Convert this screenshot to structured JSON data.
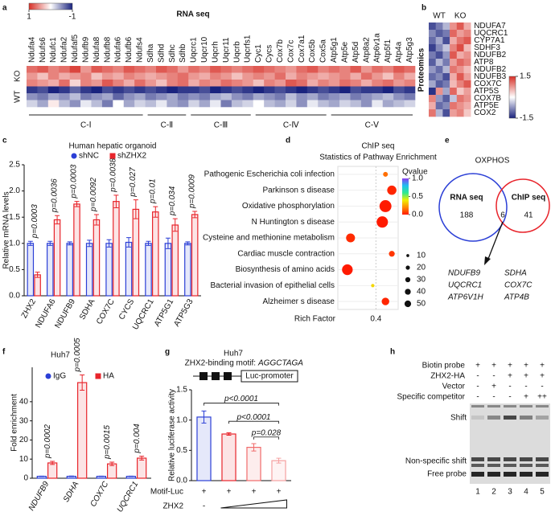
{
  "panel_labels": [
    "a",
    "b",
    "c",
    "d",
    "e",
    "f",
    "g",
    "h"
  ],
  "rna_seq": {
    "title": "RNA seq",
    "colorbar": {
      "ticks": [
        1,
        -1
      ],
      "colors": [
        "#d73027",
        "#ffffff",
        "#1a237e"
      ]
    },
    "complexes": [
      {
        "label": "C-Ⅰ",
        "genes": [
          "Ndufa4",
          "Ndufs6",
          "Ndufc1",
          "Ndufa2",
          "Ndufaf5",
          "Ndufb9",
          "Ndufa8",
          "Ndufb8",
          "Ndufa6",
          "Ndufb6",
          "Ndufs4"
        ]
      },
      {
        "label": "C-Ⅱ",
        "genes": [
          "Sdha",
          "Sdhd",
          "Sdhc",
          "Sdhb"
        ]
      },
      {
        "label": "C-Ⅲ",
        "genes": [
          "Uqcrc1",
          "Uqcr10",
          "Uqcrh",
          "Uqcr11",
          "Uqcrb",
          "Uqcrfs1"
        ]
      },
      {
        "label": "C-Ⅳ",
        "genes": [
          "Cyc1",
          "Cycs",
          "Cox7b",
          "Cox7c",
          "Cox7a1",
          "Cox5b",
          "Cox5a"
        ]
      },
      {
        "label": "C-Ⅴ",
        "genes": [
          "Atp5g1",
          "Atp5e",
          "Atp5d",
          "Atp8a2",
          "Atp6v1a",
          "Atp5f1",
          "Atp4a",
          "Atp5g3"
        ]
      }
    ],
    "conditions": [
      {
        "name": "KO",
        "values": [
          [
            0.7,
            0.8,
            0.6,
            0.7,
            0.9,
            0.5,
            0.8,
            0.7,
            0.6,
            0.8,
            0.7,
            0.6,
            0.8,
            0.7,
            0.5,
            0.7,
            0.6,
            0.8,
            0.7,
            0.6,
            0.7,
            0.8,
            0.7,
            0.6,
            0.5,
            0.7,
            0.8,
            0.6,
            0.7,
            0.6,
            0.8,
            0.5,
            0.7,
            0.6,
            0.8,
            0.7
          ],
          [
            0.5,
            0.3,
            0.6,
            0.4,
            0.5,
            0.6,
            0.3,
            0.5,
            0.4,
            0.6,
            0.5,
            0.4,
            0.5,
            0.6,
            0.7,
            0.5,
            0.4,
            0.6,
            0.5,
            0.3,
            0.5,
            0.6,
            0.5,
            0.7,
            0.4,
            0.6,
            0.5,
            0.4,
            0.5,
            0.6,
            0.4,
            0.7,
            0.5,
            0.3,
            0.6,
            0.4
          ],
          [
            0.6,
            0.5,
            0.4,
            0.7,
            0.2,
            0.6,
            0.5,
            0.8,
            0.6,
            0.4,
            0.7,
            0.5,
            0.3,
            0.6,
            0.7,
            0.4,
            0.6,
            0.5,
            0.7,
            0.6,
            0.5,
            0.3,
            0.6,
            0.5,
            0.8,
            0.7,
            0.4,
            0.6,
            0.5,
            0.7,
            0.6,
            0.4,
            0.6,
            0.7,
            0.5,
            0.6
          ]
        ]
      },
      {
        "name": "WT",
        "values": [
          [
            -0.9,
            -0.8,
            -1,
            -0.9,
            -0.7,
            -0.9,
            -1,
            -0.8,
            -0.9,
            -0.8,
            -0.9,
            -0.8,
            -0.9,
            -1,
            -0.9,
            -0.9,
            -0.8,
            -1,
            -0.9,
            -0.8,
            -0.9,
            -1,
            -0.9,
            -0.8,
            -0.9,
            -1,
            -0.9,
            -0.8,
            -0.9,
            -1,
            -0.8,
            -0.9,
            -0.9,
            -1,
            -0.8,
            -0.9
          ],
          [
            -0.5,
            -0.6,
            -0.4,
            -0.5,
            -0.3,
            -0.6,
            -0.5,
            -0.4,
            -0.7,
            -0.5,
            -0.4,
            -0.6,
            -0.5,
            -0.4,
            -0.6,
            -0.5,
            -0.6,
            -0.4,
            -0.3,
            -0.5,
            -0.6,
            -0.4,
            -0.5,
            -0.6,
            -0.3,
            -0.5,
            -0.4,
            -0.6,
            -0.5,
            -0.4,
            -0.6,
            -0.5,
            -0.4,
            -0.3,
            -0.5,
            -0.6
          ],
          [
            -0.2,
            -0.4,
            0.1,
            -0.3,
            -0.5,
            -0.1,
            -0.3,
            -0.6,
            0,
            -0.4,
            -0.2,
            -0.3,
            -0.1,
            -0.4,
            -0.5,
            -0.2,
            -0.4,
            -0.1,
            -0.6,
            -0.3,
            -0.2,
            0,
            -0.3,
            -0.4,
            -0.2,
            -0.5,
            -0.1,
            -0.3,
            -0.4,
            -0.2,
            -0.3,
            -0.5,
            -0.1,
            -0.4,
            -0.3,
            -0.2
          ]
        ]
      }
    ]
  },
  "proteomics": {
    "title": "Proteomics",
    "genes": [
      "NDUFA7",
      "UQCRC1",
      "CYP7A1",
      "SDHF3",
      "NDUFB2",
      "ATP8",
      "NDUFB2",
      "NDUFB3",
      "COX7C",
      "ATP5S",
      "COX7B",
      "ATP5E",
      "COX2"
    ],
    "colorbar": {
      "ticks": [
        1.5,
        -1.5
      ],
      "colors": [
        "#d73027",
        "#ffffff",
        "#1a237e"
      ]
    },
    "conditions": [
      {
        "name": "WT",
        "values": [
          [
            -1.2,
            -0.8,
            -1.0,
            -1.3,
            -0.9,
            -1.1,
            -0.7,
            -1.0,
            -0.6,
            -1.4,
            0.9,
            0.6,
            1.0
          ],
          [
            -0.9,
            -1.1,
            -0.6,
            -0.8,
            -1.2,
            -0.5,
            -1.0,
            -0.8,
            -1.1,
            0.8,
            -0.7,
            -1.0,
            -0.5
          ],
          [
            -0.5,
            -0.9,
            -1.2,
            -0.4,
            -0.7,
            -0.9,
            -0.5,
            -1.2,
            -0.9,
            -0.6,
            -1.1,
            -0.8,
            -1.2
          ]
        ]
      },
      {
        "name": "KO",
        "values": [
          [
            0.8,
            1.1,
            0.6,
            0.9,
            1.2,
            0.7,
            1.0,
            0.6,
            0.5,
            1.1,
            -0.4,
            1.0,
            0.7
          ],
          [
            1.2,
            0.7,
            1.0,
            1.3,
            0.6,
            1.1,
            0.8,
            1.2,
            0.9,
            0.4,
            1.0,
            0.8,
            0.9
          ],
          [
            0.6,
            0.9,
            1.2,
            0.5,
            0.8,
            0.9,
            0.5,
            0.7,
            1.2,
            0.7,
            0.8,
            0.6,
            0.4
          ]
        ]
      }
    ]
  },
  "chart_data": [
    {
      "type": "bar",
      "title": "Human hepatic organoid",
      "ylabel": "Relative mRNA levels",
      "categories": [
        "ZHX2",
        "NDUFA6",
        "NDUFB9",
        "SDHA",
        "COX7C",
        "CYCS",
        "UQCRC1",
        "ATP5G1",
        "ATP5G3"
      ],
      "series": [
        {
          "name": "shNC",
          "color": "#2b3fd6",
          "values": [
            1.0,
            1.0,
            1.0,
            1.0,
            1.0,
            1.02,
            1.0,
            1.0,
            1.0
          ],
          "errors": [
            0.04,
            0.04,
            0.03,
            0.06,
            0.07,
            0.09,
            0.04,
            0.1,
            0.03
          ]
        },
        {
          "name": "shZHX2",
          "color": "#e8242b",
          "values": [
            0.4,
            1.45,
            1.75,
            1.45,
            1.8,
            1.65,
            1.6,
            1.35,
            1.55
          ],
          "errors": [
            0.05,
            0.08,
            0.05,
            0.1,
            0.12,
            0.18,
            0.1,
            0.12,
            0.06
          ]
        }
      ],
      "annotations": [
        "p=0.0003",
        "p=0.0036",
        "p=0.0003",
        "p=0.0092",
        "p=0.0038",
        "p=0.027",
        "p=0.01",
        "p=0.034",
        "p=0.0009"
      ],
      "ylim": [
        0,
        2.5
      ],
      "yticks": [
        {
          "value": 0,
          "label": "0.0"
        },
        {
          "value": 0.5,
          "label": "0.5"
        },
        {
          "value": 1,
          "label": "1.0"
        },
        {
          "value": 1.5,
          "label": "1.5"
        },
        {
          "value": 2,
          "label": "2.0"
        },
        {
          "value": 2.5,
          "label": "2.5"
        }
      ]
    },
    {
      "type": "bubble",
      "title": "ChIP seq",
      "subtitle": "Statistics of Pathway Enrichment",
      "categories": [
        "Pathogenic Escherichia coli infection",
        "Parkinson s disease",
        "Oxidative phosphorylation",
        "N Huntington s disease",
        "Cysteine and methionine metabolism",
        "Cardiac muscle contraction",
        "Biosynthesis of amino acids",
        "Bacterial invasion of epithelial cells",
        "Alzheimer s disease"
      ],
      "category_colors": [
        "#222222",
        "#222222",
        "#e8242b",
        "#222222",
        "#222222",
        "#222222",
        "#222222",
        "#222222",
        "#222222"
      ],
      "x": [
        0.43,
        0.45,
        0.43,
        0.42,
        0.32,
        0.45,
        0.31,
        0.39,
        0.43
      ],
      "sizes": [
        8,
        30,
        50,
        45,
        28,
        12,
        40,
        4,
        20
      ],
      "qvalues": [
        0.15,
        0.02,
        0,
        0,
        0.03,
        0.05,
        0,
        0.35,
        0.02
      ],
      "xlabel": "Rich Factor",
      "xlim": [
        0.28,
        0.47
      ],
      "xticks": [
        0.4
      ],
      "color_legend": {
        "title": "Qvalue",
        "ticks": [
          {
            "value": 1,
            "label": "1.0"
          },
          {
            "value": 0.5,
            "label": "0.5"
          },
          {
            "value": 0,
            "label": "0.0"
          }
        ]
      },
      "colormap": [
        "#ff1a00",
        "#ff8a00",
        "#f0f000",
        "#30e890",
        "#20c0f0",
        "#8a3cf0"
      ],
      "size_legend": [
        10,
        20,
        30,
        40,
        50
      ]
    },
    {
      "type": "bar",
      "title": "Huh7",
      "ylabel": "Fold enrichment",
      "categories": [
        "NDUFB9",
        "SDHA",
        "COX7C",
        "UQCRC1"
      ],
      "series": [
        {
          "name": "IgG",
          "color": "#2b3fd6",
          "values": [
            1.0,
            1.0,
            1.0,
            1.0
          ],
          "errors": [
            0.1,
            0.15,
            0.1,
            0.1
          ]
        },
        {
          "name": "HA",
          "color": "#e8242b",
          "values": [
            8.0,
            50.0,
            7.5,
            10.5
          ],
          "errors": [
            0.8,
            4.0,
            0.9,
            1.0
          ]
        }
      ],
      "annotations": [
        "p=0.0002",
        "p=0.0005",
        "p=0.0015",
        "p=0.004"
      ],
      "ylim": [
        0,
        58
      ],
      "yticks": [
        0,
        10,
        20,
        30,
        40
      ]
    },
    {
      "type": "bar",
      "title": "Huh7",
      "subtitle": "ZHX2-binding motif:",
      "motif": "AGGCTAGA",
      "construct": "Luc-promoter",
      "ylabel": "Relative  luciferase activity",
      "values": [
        1.05,
        0.77,
        0.55,
        0.33
      ],
      "errors": [
        0.1,
        0.02,
        0.06,
        0.04
      ],
      "colors": [
        "#2b3fd6",
        "#e8242b",
        "#f06a6a",
        "#f5a0a0"
      ],
      "annotations": [
        "p<0.0001",
        "p<0.0001",
        "p=0.028"
      ],
      "rows": [
        {
          "name": "Motif-Luc",
          "marks": [
            "+",
            "+",
            "+",
            "+"
          ]
        },
        {
          "name": "ZHX2",
          "marks": [
            "-"
          ]
        }
      ],
      "ylim": [
        0,
        1.5
      ],
      "yticks": [
        {
          "value": 0,
          "label": "0.0"
        },
        {
          "value": 0.5,
          "label": "0.5"
        },
        {
          "value": 1,
          "label": "1.0"
        },
        {
          "value": 1.5,
          "label": "1.5"
        }
      ]
    }
  ],
  "venn": {
    "title": "OXPHOS",
    "sets": [
      {
        "name": "RNA  seq",
        "only": 188,
        "color": "#2b3fd6"
      },
      {
        "name": "ChIP  seq",
        "only": 41,
        "color": "#e8242b"
      }
    ],
    "overlap": 6,
    "genes": [
      "NDUFB9",
      "SDHA",
      "UQCRC1",
      "COX7C",
      "ATP6V1H",
      "ATP4B"
    ]
  },
  "emsa": {
    "conditions": [
      {
        "name": "Biotin probe",
        "lanes": [
          "+",
          "+",
          "+",
          "+",
          "+"
        ]
      },
      {
        "name": "ZHX2-HA",
        "lanes": [
          "-",
          "-",
          "+",
          "+",
          "+"
        ]
      },
      {
        "name": "Vector",
        "lanes": [
          "-",
          "+",
          "-",
          "-",
          "-"
        ]
      },
      {
        "name": "Specific competitor",
        "lanes": [
          "-",
          "-",
          "-",
          "+",
          "++"
        ]
      }
    ],
    "bands": [
      "Shift",
      "Non-specific shift",
      "Free probe"
    ],
    "lanes": [
      1,
      2,
      3,
      4,
      5
    ]
  }
}
